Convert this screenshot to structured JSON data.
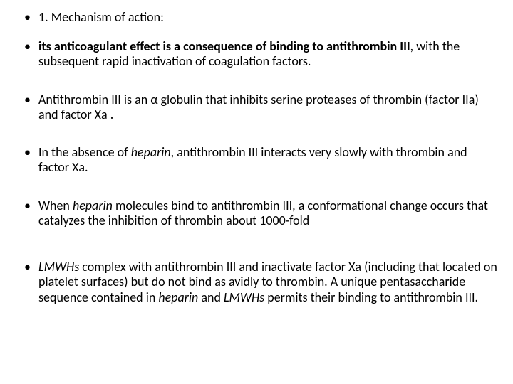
{
  "bullets": {
    "b1": {
      "t1": "1. Mechanism of action:"
    },
    "b2": {
      "lead": " ",
      "bold": "its anticoagulant effect is a consequence of binding to antithrombin III",
      "tail1": ", with the subsequent rapid inactivation of coagulation factors."
    },
    "b3": {
      "t1": "Antithrombin III is an α globulin that inhibits serine proteases of thrombin (factor IIa) and factor Xa ."
    },
    "b4": {
      "t1": "In the absence of ",
      "i1": "heparin",
      "t2": ", antithrombin III interacts very slowly with thrombin and factor Xa."
    },
    "b5": {
      "t1": " When ",
      "i1": "heparin",
      "t2": " molecules bind to antithrombin III, a conformational change occurs that catalyzes the inhibition of thrombin about 1000-fold"
    },
    "b6": {
      "i1": "LMWHs",
      "t1": " complex with antithrombin III and inactivate factor Xa (including that located on platelet surfaces) but do not bind as avidly to thrombin. A unique pentasaccharide sequence contained in ",
      "i2": "heparin",
      "t2": " and ",
      "i3": "LMWHs",
      "t3": " permits their binding to antithrombin III."
    }
  }
}
